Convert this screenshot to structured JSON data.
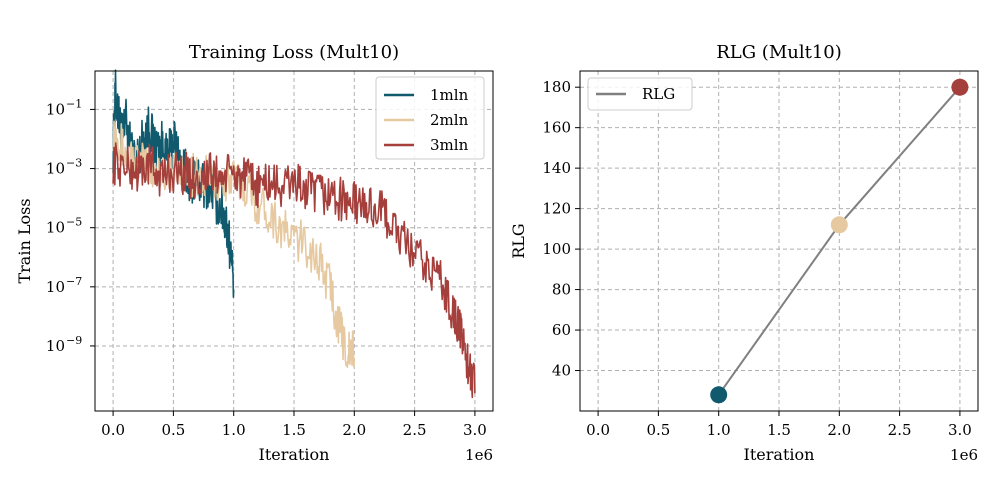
{
  "colors": {
    "1mln": "#115a6e",
    "2mln": "#e6c9a0",
    "3mln": "#a43f3c",
    "rlg_line": "#808080",
    "grid": "#b0b0b0"
  },
  "chart_data": [
    {
      "type": "line",
      "title": "Training Loss (Mult10)",
      "xlabel": "Iteration",
      "ylabel": "Train Loss",
      "x_offset_label": "1e6",
      "xlim": [
        -0.15,
        3.15
      ],
      "x_scale": 1000000,
      "yscale": "log",
      "ylim_log10": [
        -11.2,
        0.3
      ],
      "xticks": [
        0.0,
        0.5,
        1.0,
        1.5,
        2.0,
        2.5,
        3.0
      ],
      "xtick_labels": [
        "0.0",
        "0.5",
        "1.0",
        "1.5",
        "2.0",
        "2.5",
        "3.0"
      ],
      "yticks_log10": [
        -1,
        -3,
        -5,
        -7,
        -9
      ],
      "ytick_labels": [
        {
          "base": "10",
          "exp": "−1"
        },
        {
          "base": "10",
          "exp": "−3"
        },
        {
          "base": "10",
          "exp": "−5"
        },
        {
          "base": "10",
          "exp": "−7"
        },
        {
          "base": "10",
          "exp": "−9"
        }
      ],
      "grid": true,
      "legend_position": "top-right",
      "series": [
        {
          "name": "1mln",
          "x": [
            0.0,
            0.02,
            0.05,
            0.08,
            0.1,
            0.15,
            0.2,
            0.25,
            0.3,
            0.35,
            0.4,
            0.45,
            0.5,
            0.55,
            0.6,
            0.65,
            0.7,
            0.75,
            0.8,
            0.85,
            0.9,
            0.93,
            0.96,
            1.0
          ],
          "log10_y": [
            -2.6,
            -0.7,
            -1.6,
            -2.3,
            -1.5,
            -2.7,
            -2.9,
            -2.2,
            -1.8,
            -2.6,
            -2.4,
            -3.0,
            -2.2,
            -2.9,
            -3.4,
            -3.6,
            -3.6,
            -3.9,
            -3.7,
            -4.3,
            -4.6,
            -5.0,
            -5.6,
            -7.1
          ]
        },
        {
          "name": "2mln",
          "x": [
            0.0,
            0.05,
            0.1,
            0.2,
            0.3,
            0.4,
            0.5,
            0.6,
            0.7,
            0.8,
            0.9,
            1.0,
            1.1,
            1.2,
            1.3,
            1.4,
            1.5,
            1.6,
            1.7,
            1.8,
            1.85,
            1.9,
            1.95,
            2.0
          ],
          "log10_y": [
            -1.9,
            -2.2,
            -2.8,
            -3.0,
            -3.2,
            -3.3,
            -3.4,
            -3.2,
            -3.6,
            -3.5,
            -3.7,
            -3.6,
            -3.8,
            -4.4,
            -4.7,
            -5.3,
            -5.6,
            -5.8,
            -6.3,
            -7.2,
            -8.2,
            -8.9,
            -9.5,
            -9.4
          ]
        },
        {
          "name": "3mln",
          "x": [
            0.0,
            0.1,
            0.2,
            0.3,
            0.4,
            0.5,
            0.6,
            0.7,
            0.8,
            0.9,
            1.0,
            1.1,
            1.2,
            1.3,
            1.4,
            1.5,
            1.6,
            1.7,
            1.8,
            1.9,
            2.0,
            2.1,
            2.2,
            2.3,
            2.4,
            2.5,
            2.6,
            2.7,
            2.8,
            2.85,
            2.9,
            2.95,
            3.0
          ],
          "log10_y": [
            -3.0,
            -3.2,
            -3.3,
            -3.1,
            -3.5,
            -3.3,
            -3.4,
            -3.6,
            -3.4,
            -3.5,
            -3.4,
            -3.6,
            -3.8,
            -3.7,
            -3.9,
            -3.6,
            -4.0,
            -4.1,
            -4.1,
            -4.3,
            -4.4,
            -4.5,
            -4.6,
            -5.0,
            -5.7,
            -6.1,
            -6.6,
            -6.8,
            -7.9,
            -8.4,
            -9.0,
            -10.0,
            -10.6
          ]
        }
      ]
    },
    {
      "type": "line",
      "title": "RLG (Mult10)",
      "xlabel": "Iteration",
      "ylabel": "RLG",
      "x_offset_label": "1e6",
      "xlim": [
        -0.15,
        3.15
      ],
      "x_scale": 1000000,
      "ylim": [
        20,
        188
      ],
      "xticks": [
        0.0,
        0.5,
        1.0,
        1.5,
        2.0,
        2.5,
        3.0
      ],
      "xtick_labels": [
        "0.0",
        "0.5",
        "1.0",
        "1.5",
        "2.0",
        "2.5",
        "3.0"
      ],
      "yticks": [
        40,
        60,
        80,
        100,
        120,
        140,
        160,
        180
      ],
      "ytick_labels": [
        "40",
        "60",
        "80",
        "100",
        "120",
        "140",
        "160",
        "180"
      ],
      "grid": true,
      "legend_position": "top-left",
      "series": [
        {
          "name": "RLG",
          "x": [
            1.0,
            2.0,
            3.0
          ],
          "y": [
            28,
            112,
            180
          ],
          "point_colors": [
            "#115a6e",
            "#e6c9a0",
            "#a43f3c"
          ]
        }
      ]
    }
  ]
}
